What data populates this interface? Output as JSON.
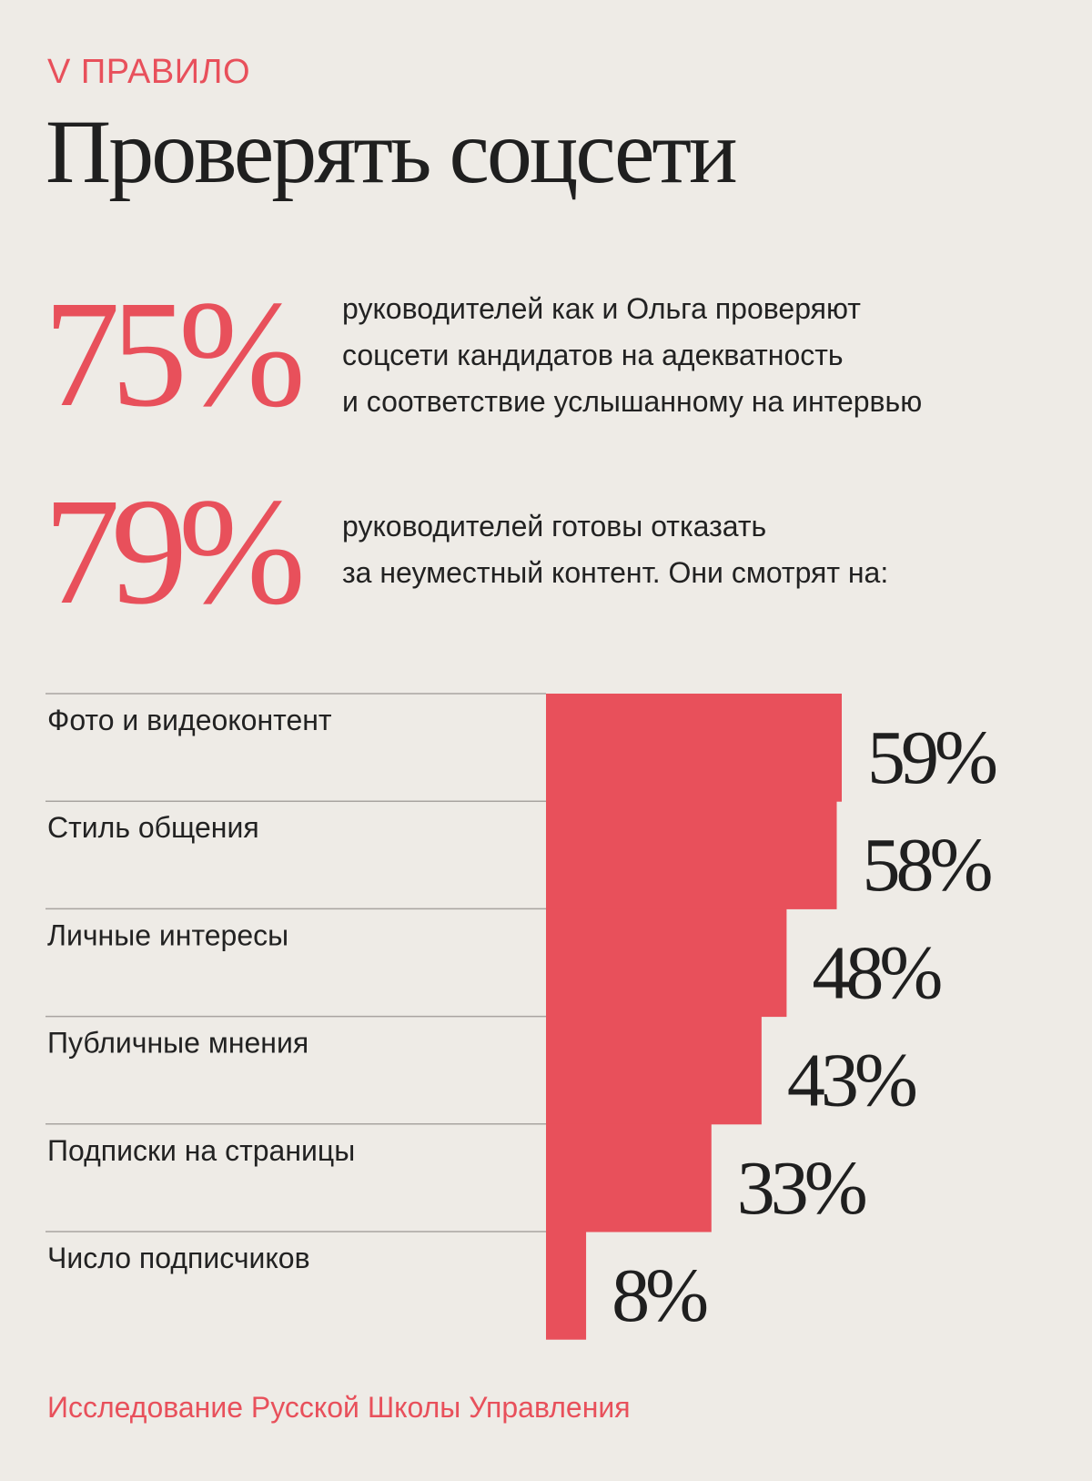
{
  "header": {
    "section_label": "V ПРАВИЛО",
    "title": "Проверять соцсети"
  },
  "stats": [
    {
      "value": "75%",
      "lines": [
        "руководителей как и Ольга проверяют",
        "соцсети кандидатов на адекватность",
        "и соответствие услышанному на интервью"
      ]
    },
    {
      "value": "79%",
      "lines": [
        "руководителей готовы отказать",
        "за неуместный контент. Они смотрят на:"
      ]
    }
  ],
  "colors": {
    "accent": "#e8505b",
    "text": "#222222",
    "background": "#eeebe6"
  },
  "chart_data": {
    "type": "bar",
    "orientation": "horizontal",
    "categories": [
      "Фото и видеоконтент",
      "Стиль общения",
      "Личные интересы",
      "Публичные мнения",
      "Подписки на страницы",
      "Число подписчиков"
    ],
    "values": [
      59,
      58,
      48,
      43,
      33,
      8
    ],
    "value_labels": [
      "59%",
      "58%",
      "48%",
      "43%",
      "33%",
      "8%"
    ],
    "xlim": [
      0,
      59
    ],
    "grid": false,
    "legend": false
  },
  "footer": {
    "source": "Исследование Русской Школы Управления"
  }
}
